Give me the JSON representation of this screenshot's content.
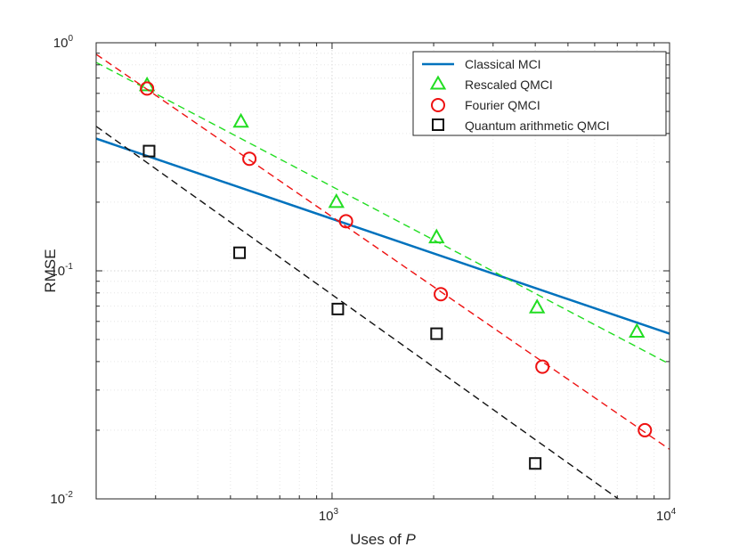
{
  "chart_data": {
    "type": "scatter",
    "xscale": "log",
    "yscale": "log",
    "xlim": [
      200,
      10000
    ],
    "ylim": [
      0.01,
      1
    ],
    "xlabel": {
      "prefix": "Uses of ",
      "var": "P"
    },
    "ylabel": "RMSE",
    "grid": true,
    "x_ticks": [
      {
        "value": 1000,
        "base": "10",
        "exp": "3"
      },
      {
        "value": 10000,
        "base": "10",
        "exp": "4"
      }
    ],
    "y_ticks": [
      {
        "value": 0.01,
        "base": "10",
        "exp": "-2"
      },
      {
        "value": 0.1,
        "base": "10",
        "exp": "-1"
      },
      {
        "value": 1,
        "base": "10",
        "exp": "0"
      }
    ],
    "legend_position": "top-right",
    "series": [
      {
        "name": "Classical MCI",
        "style": "line",
        "color": "#0072BD",
        "line": {
          "x": [
            200,
            10000
          ],
          "y": [
            0.38,
            0.053
          ]
        }
      },
      {
        "name": "Rescaled QMCI",
        "style": "triangle",
        "color": "#22DD22",
        "x": [
          283,
          537,
          1030,
          2040,
          4050,
          8000
        ],
        "y": [
          0.65,
          0.45,
          0.2,
          0.14,
          0.069,
          0.054
        ],
        "fit": {
          "x": [
            200,
            10000
          ],
          "y": [
            0.82,
            0.039
          ]
        }
      },
      {
        "name": "Fourier QMCI",
        "style": "circle",
        "color": "#EE1111",
        "x": [
          283,
          569,
          1100,
          2100,
          4200,
          8450
        ],
        "y": [
          0.63,
          0.31,
          0.165,
          0.079,
          0.038,
          0.02
        ],
        "fit": {
          "x": [
            200,
            10000
          ],
          "y": [
            0.89,
            0.0165
          ]
        }
      },
      {
        "name": "Quantum arithmetic QMCI",
        "style": "square",
        "color": "#111111",
        "x": [
          287,
          532,
          1040,
          2040,
          4000
        ],
        "y": [
          0.335,
          0.12,
          0.068,
          0.053,
          0.0143
        ],
        "fit": {
          "x": [
            200,
            7050
          ],
          "y": [
            0.43,
            0.01
          ]
        }
      }
    ]
  }
}
